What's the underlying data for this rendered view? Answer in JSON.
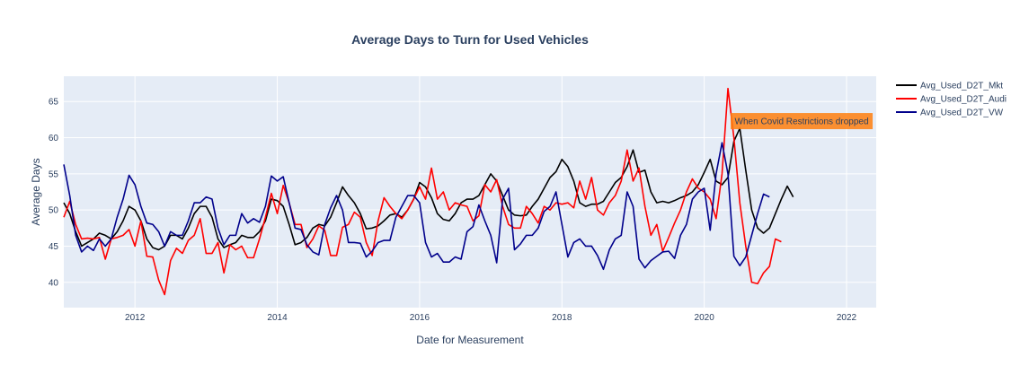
{
  "chart_data": {
    "type": "line",
    "title": "Average Days to Turn for Used Vehicles",
    "xlabel": "Date for Measurement",
    "ylabel": "Average Days",
    "xlim": [
      "2011-01-01",
      "2022-06-01"
    ],
    "ylim": [
      36.5,
      68.5
    ],
    "x_ticks": [
      "2012-01-01",
      "2014-01-01",
      "2016-01-01",
      "2018-01-01",
      "2020-01-01",
      "2022-01-01"
    ],
    "x_tick_labels": [
      "2012",
      "2014",
      "2016",
      "2018",
      "2020",
      "2022"
    ],
    "y_ticks": [
      40,
      45,
      50,
      55,
      60,
      65
    ],
    "grid": true,
    "legend_position": "top-right",
    "start_date": "2011-01",
    "frequency": "monthly",
    "series": [
      {
        "name": "Avg_Used_D2T_Mkt",
        "color": "#000000",
        "values": [
          51,
          49.5,
          47,
          45,
          45.5,
          46,
          46.8,
          46.5,
          46,
          47,
          48.5,
          50.5,
          50,
          48.5,
          46,
          44.8,
          44.5,
          45,
          46.5,
          46.5,
          46,
          47.5,
          49.5,
          50.5,
          50.5,
          49,
          46,
          44.8,
          45.2,
          45.5,
          46.5,
          46.2,
          46.2,
          47,
          48.5,
          51.5,
          51.3,
          50.5,
          48,
          45.2,
          45.5,
          46.2,
          47.5,
          48,
          47.8,
          49,
          51,
          53.2,
          52,
          51,
          49.5,
          47.4,
          47.5,
          47.8,
          48.5,
          49.3,
          49.5,
          49,
          50,
          51.5,
          53.8,
          53.2,
          51.7,
          49.5,
          48.7,
          48.5,
          49.5,
          51,
          51.5,
          51.5,
          52,
          53.5,
          55,
          54,
          52,
          50,
          49.3,
          49.2,
          49.3,
          50.5,
          51.5,
          53,
          54.5,
          55.3,
          57,
          56,
          54,
          51,
          50.5,
          50.8,
          50.8,
          51.2,
          52.5,
          53.8,
          54.5,
          56,
          58.3,
          55.2,
          55.5,
          52.5,
          51,
          51.2,
          51,
          51.3,
          51.7,
          52,
          52.5,
          53.5,
          55.2,
          57,
          54,
          53.5,
          54.5,
          59.5,
          61.3,
          55.5,
          50,
          47.5,
          46.8,
          47.5,
          49.5,
          51.5,
          53.3,
          51.8
        ],
        "values_note": "monthly from 2011-01"
      },
      {
        "name": "Avg_Used_D2T_Audi",
        "color": "#ff0000",
        "values": [
          49,
          51.2,
          48,
          46,
          46.1,
          46,
          46.2,
          43.2,
          46,
          46.2,
          46.5,
          47.3,
          45,
          48.5,
          43.6,
          43.5,
          40.3,
          38.3,
          43,
          44.7,
          44,
          45.8,
          46.5,
          48.8,
          44,
          44,
          45.5,
          41.3,
          45.2,
          44.5,
          45,
          43.4,
          43.4,
          46,
          49,
          52.3,
          49.5,
          53.4,
          51,
          48,
          48,
          44.8,
          46,
          47.8,
          47.2,
          43.7,
          43.7,
          47.6,
          48,
          49.7,
          49,
          45.5,
          43.7,
          48.5,
          51.7,
          50.5,
          49.5,
          48.8,
          50,
          51.5,
          53.2,
          51.5,
          55.8,
          51.5,
          52.5,
          50,
          51,
          50.7,
          50.5,
          48.5,
          49.2,
          53.5,
          52.5,
          54.2,
          50.5,
          48,
          47.5,
          47.5,
          50.5,
          49.5,
          48.2,
          50.5,
          50,
          51,
          50.8,
          51,
          50.3,
          54,
          51.5,
          54.5,
          50,
          49.3,
          51,
          52,
          54,
          58.3,
          54,
          55.8,
          50.5,
          46.5,
          48,
          44.3,
          46.2,
          48.2,
          50,
          52.5,
          54.3,
          53,
          52.5,
          51.5,
          48.8,
          55,
          66.8,
          60,
          51,
          45,
          40,
          39.8,
          41.3,
          42.2,
          46,
          45.6
        ]
      },
      {
        "name": "Avg_Used_D2T_VW",
        "color": "#00008b",
        "values": [
          56.3,
          52,
          46.5,
          44.2,
          45,
          44.4,
          46,
          45,
          46,
          49,
          51.5,
          54.8,
          53.5,
          50.5,
          48.2,
          48,
          47,
          45,
          47,
          46.5,
          46.5,
          48.5,
          51,
          51,
          51.8,
          51.5,
          47.5,
          45.2,
          46.5,
          46.5,
          49.5,
          48.2,
          48.8,
          48.3,
          50.5,
          54.7,
          54,
          54.6,
          51,
          47.5,
          47.3,
          45.2,
          44.2,
          43.8,
          48,
          50.3,
          52,
          50,
          45.5,
          45.5,
          45.4,
          43.5,
          44.3,
          45.5,
          45.8,
          45.8,
          49,
          50.5,
          52,
          52,
          51,
          45.5,
          43.5,
          44,
          42.8,
          42.8,
          43.5,
          43.2,
          47,
          47.7,
          50.7,
          48.5,
          46.5,
          42.7,
          51.5,
          53,
          44.5,
          45.3,
          46.5,
          46.5,
          47.5,
          49.8,
          50.5,
          52.5,
          48,
          43.5,
          45.5,
          46,
          45,
          45,
          43.7,
          41.8,
          44.5,
          46,
          46.5,
          52.5,
          50.5,
          43.2,
          42,
          43,
          43.6,
          44.2,
          44.3,
          43.3,
          46.5,
          48,
          51.5,
          52.5,
          53,
          47.2,
          55,
          59.3,
          55,
          43.6,
          42.3,
          43.5,
          46.5,
          49.5,
          52.2,
          51.8
        ]
      }
    ],
    "annotation": {
      "text": "When Covid Restrictions dropped",
      "x": "2020-05-01",
      "y": 61.3,
      "bgcolor": "#ff7f0e"
    }
  }
}
